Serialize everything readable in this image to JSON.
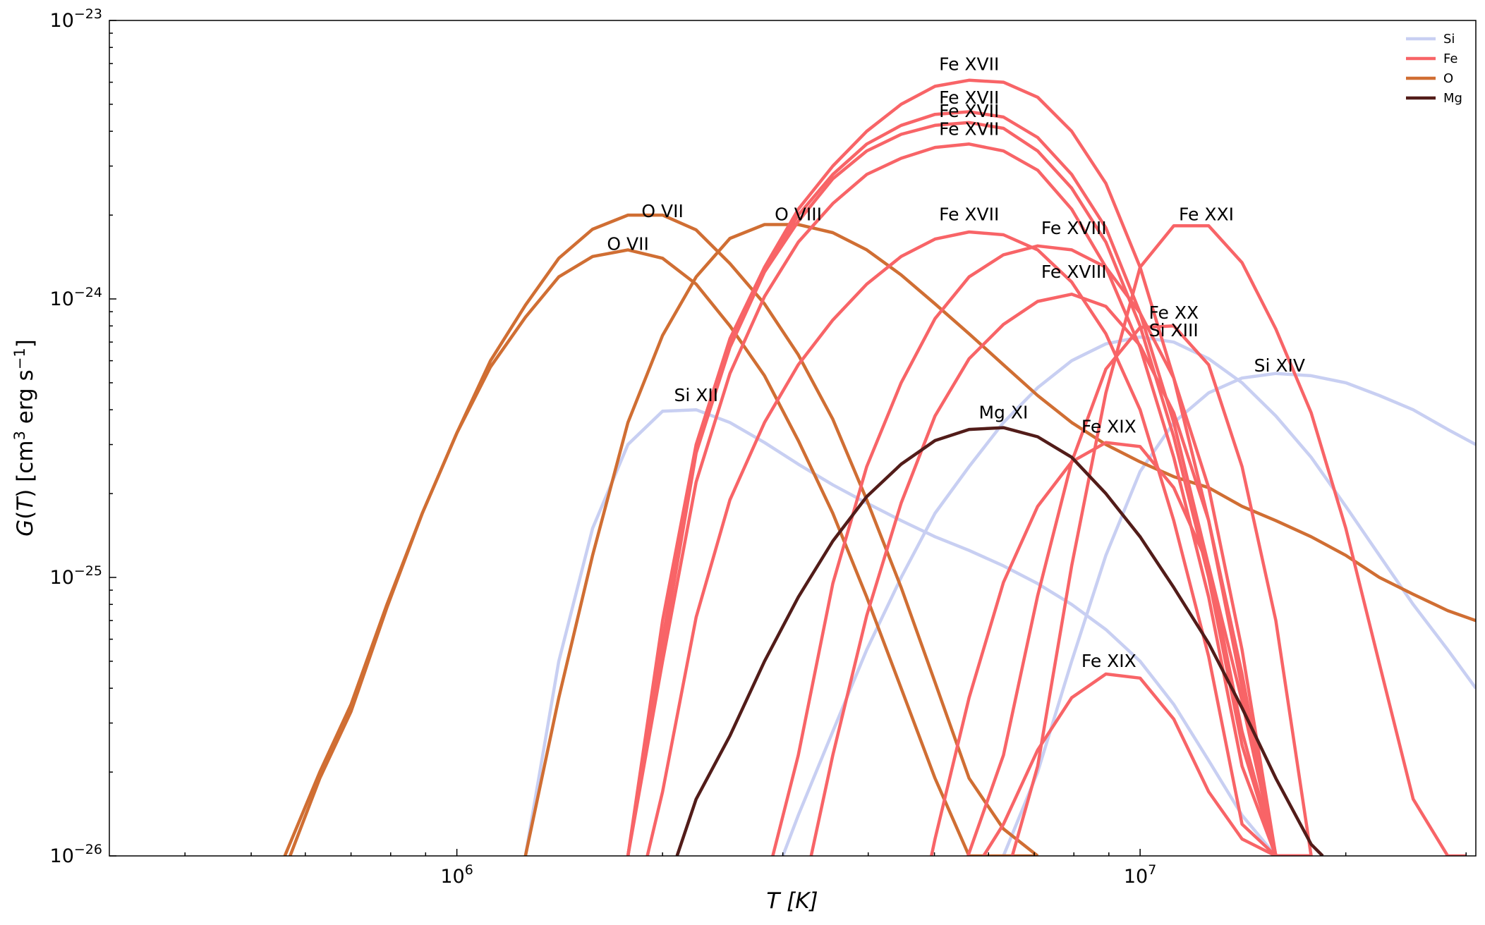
{
  "chart_data": {
    "type": "line",
    "title": "",
    "xlabel": "T [K]",
    "ylabel": "G(T) [cm3 erg s-1]",
    "x_scale": "log",
    "y_scale": "log",
    "xlim": [
      310000,
      31000000
    ],
    "ylim": [
      1e-26,
      1e-23
    ],
    "x_tick_labels": [
      {
        "value": 1000000,
        "base": "10",
        "exp": "6"
      },
      {
        "value": 10000000,
        "base": "10",
        "exp": "7"
      }
    ],
    "y_tick_labels": [
      {
        "value": 1e-26,
        "base": "10",
        "exp": "−26"
      },
      {
        "value": 1e-25,
        "base": "10",
        "exp": "−25"
      },
      {
        "value": 1e-24,
        "base": "10",
        "exp": "−24"
      },
      {
        "value": 1e-23,
        "base": "10",
        "exp": "−23"
      }
    ],
    "grid": false,
    "legend_placement": "top-right",
    "colors": {
      "Si": "#c8cff2",
      "Fe": "#f86467",
      "O": "#d06e33",
      "Mg": "#521c19"
    },
    "legend": [
      {
        "element": "Si",
        "label": "Si"
      },
      {
        "element": "Fe",
        "label": "Fe"
      },
      {
        "element": "O",
        "label": "O"
      },
      {
        "element": "Mg",
        "label": "Mg"
      }
    ],
    "series": [
      {
        "element": "O",
        "label": "O VII",
        "label_at": [
          2000000,
          1.9e-24
        ],
        "x": [
          560000,
          630000,
          700000,
          790000,
          890000,
          1000000,
          1120000,
          1260000,
          1410000,
          1580000,
          1780000,
          2000000,
          2240000,
          2510000,
          2820000,
          3160000,
          3550000,
          3980000,
          4470000,
          5010000,
          5620000,
          6310000,
          7080000
        ],
        "y": [
          1e-26,
          2e-26,
          3.5e-26,
          8e-26,
          1.7e-25,
          3.3e-25,
          6e-25,
          9.5e-25,
          1.4e-24,
          1.78e-24,
          2e-24,
          2e-24,
          1.77e-24,
          1.34e-24,
          9.6e-25,
          6.3e-25,
          3.7e-25,
          1.9e-25,
          9.2e-26,
          4.2e-26,
          1.9e-26,
          1.25e-26,
          1e-26
        ]
      },
      {
        "element": "O",
        "label": "O VII",
        "label_at": [
          1780000,
          1.45e-24
        ],
        "x": [
          570000,
          630000,
          700000,
          790000,
          890000,
          1000000,
          1120000,
          1260000,
          1410000,
          1580000,
          1780000,
          2000000,
          2240000,
          2510000,
          2820000,
          3160000,
          3550000,
          3980000,
          4470000,
          5010000,
          5620000,
          6310000,
          7080000
        ],
        "y": [
          1e-26,
          1.9e-26,
          3.3e-26,
          7.8e-26,
          1.7e-25,
          3.3e-25,
          5.7e-25,
          8.6e-25,
          1.2e-24,
          1.42e-24,
          1.5e-24,
          1.4e-24,
          1.13e-24,
          8e-25,
          5.3e-25,
          3.1e-25,
          1.7e-25,
          8.5e-26,
          4e-26,
          1.9e-26,
          1e-26,
          1e-26,
          1e-26
        ]
      },
      {
        "element": "O",
        "label": "O VIII",
        "label_at": [
          3160000,
          1.85e-24
        ],
        "x": [
          1260000,
          1410000,
          1580000,
          1780000,
          2000000,
          2240000,
          2510000,
          2820000,
          3160000,
          3550000,
          3980000,
          4470000,
          5010000,
          5620000,
          6310000,
          7080000,
          7940000,
          8910000,
          10000000,
          11200000,
          12600000,
          14100000,
          15800000,
          17800000,
          20000000,
          22400000,
          25100000,
          28200000,
          31000000
        ],
        "y": [
          1e-26,
          3.7e-26,
          1.2e-25,
          3.6e-25,
          7.4e-25,
          1.2e-24,
          1.65e-24,
          1.85e-24,
          1.85e-24,
          1.73e-24,
          1.5e-24,
          1.22e-24,
          9.6e-25,
          7.5e-25,
          5.8e-25,
          4.5e-25,
          3.6e-25,
          3e-25,
          2.6e-25,
          2.3e-25,
          2.1e-25,
          1.8e-25,
          1.6e-25,
          1.4e-25,
          1.2e-25,
          1e-25,
          8.7e-26,
          7.6e-26,
          7e-26
        ]
      },
      {
        "element": "Si",
        "label": "Si XII",
        "label_at": [
          2240000,
          4.15e-25
        ],
        "x": [
          1260000,
          1410000,
          1580000,
          1780000,
          2000000,
          2240000,
          2510000,
          2820000,
          3160000,
          3550000,
          3980000,
          4470000,
          5010000,
          5620000,
          6310000,
          7080000,
          7940000,
          8910000,
          10000000,
          11200000,
          12600000,
          14100000,
          15800000
        ],
        "y": [
          1e-26,
          5e-26,
          1.5e-25,
          3e-25,
          3.95e-25,
          4e-25,
          3.6e-25,
          3.05e-25,
          2.55e-25,
          2.15e-25,
          1.85e-25,
          1.6e-25,
          1.4e-25,
          1.25e-25,
          1.1e-25,
          9.5e-26,
          8e-26,
          6.5e-26,
          5e-26,
          3.5e-26,
          2.2e-26,
          1.4e-26,
          1e-26
        ]
      },
      {
        "element": "Si",
        "label": "Si XIII",
        "label_at": [
          11200000,
          7.1e-25
        ],
        "x": [
          3000000,
          3160000,
          3550000,
          3980000,
          4470000,
          5010000,
          5620000,
          6310000,
          7080000,
          7940000,
          8910000,
          10000000,
          11200000,
          12600000,
          14100000,
          15800000,
          17800000,
          20000000,
          22400000,
          25100000,
          28200000,
          31000000
        ],
        "y": [
          1e-26,
          1.4e-26,
          2.8e-26,
          5.5e-26,
          1e-25,
          1.7e-25,
          2.5e-25,
          3.6e-25,
          4.8e-25,
          6e-25,
          6.9e-25,
          7.3e-25,
          7e-25,
          6.1e-25,
          5e-25,
          3.8e-25,
          2.7e-25,
          1.8e-25,
          1.2e-25,
          8e-26,
          5.5e-26,
          4e-26
        ]
      },
      {
        "element": "Si",
        "label": "Si XIV",
        "label_at": [
          16000000,
          5.3e-25
        ],
        "x": [
          6310000,
          7080000,
          7940000,
          8910000,
          10000000,
          11200000,
          12600000,
          14100000,
          15800000,
          17800000,
          20000000,
          22400000,
          25100000,
          28200000,
          31000000
        ],
        "y": [
          1e-26,
          2e-26,
          5e-26,
          1.2e-25,
          2.4e-25,
          3.6e-25,
          4.6e-25,
          5.2e-25,
          5.4e-25,
          5.3e-25,
          5e-25,
          4.5e-25,
          4e-25,
          3.4e-25,
          3e-25
        ]
      },
      {
        "element": "Fe",
        "label": "Fe XVII",
        "label_at": [
          5620000,
          6.4e-24
        ],
        "x": [
          1780000,
          2000000,
          2240000,
          2510000,
          2820000,
          3160000,
          3550000,
          3980000,
          4470000,
          5010000,
          5620000,
          6310000,
          7080000,
          7940000,
          8910000,
          10000000,
          11200000,
          12600000,
          14100000,
          15800000,
          17800000
        ],
        "y": [
          1e-26,
          7e-26,
          3e-25,
          7.2e-25,
          1.3e-24,
          2.1e-24,
          3e-24,
          4e-24,
          5e-24,
          5.8e-24,
          6.1e-24,
          6e-24,
          5.3e-24,
          4e-24,
          2.6e-24,
          1.3e-24,
          5.2e-25,
          1.6e-25,
          4e-26,
          1e-26,
          1e-26
        ]
      },
      {
        "element": "Fe",
        "label": "Fe XVII",
        "label_at": [
          5620000,
          4.85e-24
        ],
        "x": [
          1780000,
          2000000,
          2240000,
          2510000,
          2820000,
          3160000,
          3550000,
          3980000,
          4470000,
          5010000,
          5620000,
          6310000,
          7080000,
          7940000,
          8910000,
          10000000,
          11200000,
          12600000,
          14100000,
          15800000,
          17800000
        ],
        "y": [
          1e-26,
          6e-26,
          2.9e-25,
          6.9e-25,
          1.28e-24,
          2e-24,
          2.8e-24,
          3.6e-24,
          4.2e-24,
          4.6e-24,
          4.7e-24,
          4.5e-24,
          3.8e-24,
          2.8e-24,
          1.8e-24,
          8.9e-25,
          3.6e-25,
          1.1e-25,
          2.8e-26,
          1e-26,
          1e-26
        ]
      },
      {
        "element": "Fe",
        "label": "Fe XVII",
        "label_at": [
          5620000,
          4.35e-24
        ],
        "x": [
          1780000,
          2000000,
          2240000,
          2510000,
          2820000,
          3160000,
          3550000,
          3980000,
          4470000,
          5010000,
          5620000,
          6310000,
          7080000,
          7940000,
          8910000,
          10000000,
          11200000,
          12600000,
          14100000,
          15800000,
          17800000
        ],
        "y": [
          1e-26,
          5.5e-26,
          2.8e-25,
          6.7e-25,
          1.25e-24,
          1.9e-24,
          2.7e-24,
          3.4e-24,
          3.9e-24,
          4.2e-24,
          4.3e-24,
          4.1e-24,
          3.4e-24,
          2.5e-24,
          1.6e-24,
          8e-25,
          3.2e-25,
          1e-25,
          2.5e-26,
          1e-26,
          1e-26
        ]
      },
      {
        "element": "Fe",
        "label": "Fe XVII",
        "label_at": [
          5620000,
          3.75e-24
        ],
        "x": [
          1780000,
          2000000,
          2240000,
          2510000,
          2820000,
          3160000,
          3550000,
          3980000,
          4470000,
          5010000,
          5620000,
          6310000,
          7080000,
          7940000,
          8910000,
          10000000,
          11200000,
          12600000,
          14100000,
          15800000,
          17800000
        ],
        "y": [
          1e-26,
          5e-26,
          2.2e-25,
          5.4e-25,
          1.02e-24,
          1.6e-24,
          2.2e-24,
          2.8e-24,
          3.2e-24,
          3.5e-24,
          3.6e-24,
          3.4e-24,
          2.9e-24,
          2.1e-24,
          1.3e-24,
          6.7e-25,
          2.7e-25,
          8.5e-26,
          2.1e-26,
          1e-26,
          1e-26
        ]
      },
      {
        "element": "Fe",
        "label": "Fe XVII",
        "label_at": [
          5620000,
          1.85e-24
        ],
        "x": [
          1900000,
          2000000,
          2240000,
          2510000,
          2820000,
          3160000,
          3550000,
          3980000,
          4470000,
          5010000,
          5620000,
          6310000,
          7080000,
          7940000,
          8910000,
          10000000,
          11200000,
          12600000,
          14100000,
          15800000,
          17800000
        ],
        "y": [
          1e-26,
          1.7e-26,
          7.2e-26,
          1.9e-25,
          3.6e-25,
          5.8e-25,
          8.4e-25,
          1.13e-24,
          1.42e-24,
          1.64e-24,
          1.74e-24,
          1.7e-24,
          1.5e-24,
          1.15e-24,
          7.5e-25,
          4e-25,
          1.6e-25,
          5.2e-26,
          1.3e-26,
          1e-26,
          1e-26
        ]
      },
      {
        "element": "Fe",
        "label": "Fe XVIII",
        "label_at": [
          8000000,
          1.65e-24
        ],
        "x": [
          2900000,
          3160000,
          3550000,
          3980000,
          4470000,
          5010000,
          5620000,
          6310000,
          7080000,
          7940000,
          8910000,
          10000000,
          11200000,
          12600000,
          14100000,
          15800000,
          17800000
        ],
        "y": [
          1e-26,
          2.3e-26,
          9.5e-26,
          2.5e-25,
          5e-25,
          8.5e-25,
          1.2e-24,
          1.44e-24,
          1.55e-24,
          1.5e-24,
          1.3e-24,
          8.9e-25,
          5.2e-25,
          2.1e-25,
          5.5e-26,
          1e-26,
          1e-26
        ]
      },
      {
        "element": "Fe",
        "label": "Fe XVIII",
        "label_at": [
          8000000,
          1.15e-24
        ],
        "x": [
          3300000,
          3550000,
          3980000,
          4470000,
          5010000,
          5620000,
          6310000,
          7080000,
          7940000,
          8910000,
          10000000,
          11200000,
          12600000,
          14100000,
          15800000,
          17800000
        ],
        "y": [
          1e-26,
          2.3e-26,
          7.3e-26,
          1.85e-25,
          3.8e-25,
          6.1e-25,
          8.1e-25,
          9.8e-25,
          1.04e-24,
          9.4e-25,
          6.8e-25,
          3.9e-25,
          1.6e-25,
          4.5e-26,
          1e-26,
          1e-26
        ]
      },
      {
        "element": "Fe",
        "label": "Fe XIX",
        "label_at": [
          9000000,
          3.2e-25
        ],
        "x": [
          4950000,
          5010000,
          5620000,
          6310000,
          7080000,
          7940000,
          8910000,
          10000000,
          11200000,
          12600000,
          14100000,
          15800000,
          17800000
        ],
        "y": [
          1e-26,
          1.15e-26,
          3.7e-26,
          9.6e-26,
          1.8e-25,
          2.6e-25,
          3.05e-25,
          2.95e-25,
          2.1e-25,
          1.1e-25,
          3.6e-26,
          1e-26,
          1e-26
        ]
      },
      {
        "element": "Fe",
        "label": "Fe XIX",
        "label_at": [
          9000000,
          4.6e-26
        ],
        "x": [
          5900000,
          6310000,
          7080000,
          7940000,
          8910000,
          10000000,
          11200000,
          12600000,
          14100000,
          15800000
        ],
        "y": [
          1e-26,
          1.3e-26,
          2.4e-26,
          3.7e-26,
          4.5e-26,
          4.35e-26,
          3.1e-26,
          1.7e-26,
          1.15e-26,
          1e-26
        ]
      },
      {
        "element": "Fe",
        "label": "Fe XX",
        "label_at": [
          11200000,
          8.2e-25
        ],
        "x": [
          5600000,
          6310000,
          7080000,
          7940000,
          8910000,
          10000000,
          11200000,
          12600000,
          14100000,
          15800000,
          17800000
        ],
        "y": [
          1e-26,
          2.3e-26,
          8.6e-26,
          2.6e-25,
          5.6e-25,
          7.9e-25,
          8e-25,
          5.8e-25,
          2.5e-25,
          7e-26,
          1e-26
        ]
      },
      {
        "element": "Fe",
        "label": "Fe XXI",
        "label_at": [
          12500000,
          1.85e-24
        ],
        "x": [
          6500000,
          7080000,
          7940000,
          8910000,
          10000000,
          11200000,
          12600000,
          14100000,
          15800000,
          17800000,
          20000000,
          22400000,
          25100000,
          28200000,
          30000000
        ],
        "y": [
          1e-26,
          2.1e-26,
          1.1e-25,
          4.6e-25,
          1.3e-24,
          1.83e-24,
          1.83e-24,
          1.35e-24,
          7.8e-25,
          3.9e-25,
          1.5e-25,
          4.9e-26,
          1.6e-26,
          1e-26,
          1e-26
        ]
      },
      {
        "element": "Mg",
        "label": "Mg XI",
        "label_at": [
          6310000,
          3.6e-25
        ],
        "x": [
          2100000,
          2240000,
          2510000,
          2820000,
          3160000,
          3550000,
          3980000,
          4470000,
          5010000,
          5620000,
          6310000,
          7080000,
          7940000,
          8910000,
          10000000,
          11200000,
          12600000,
          14100000,
          15800000,
          17800000,
          18500000
        ],
        "y": [
          1e-26,
          1.6e-26,
          2.7e-26,
          5e-26,
          8.5e-26,
          1.35e-25,
          1.95e-25,
          2.55e-25,
          3.1e-25,
          3.4e-25,
          3.45e-25,
          3.2e-25,
          2.7e-25,
          2e-25,
          1.4e-25,
          9.2e-26,
          5.8e-26,
          3.4e-26,
          1.9e-26,
          1.1e-26,
          1e-26
        ]
      }
    ]
  }
}
